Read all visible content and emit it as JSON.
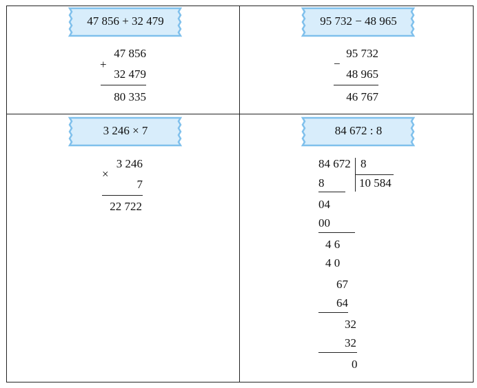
{
  "cells": [
    {
      "title": "47 856 + 32 479",
      "operator": "+",
      "operand1": "47 856",
      "operand2": "32 479",
      "result": "80 335"
    },
    {
      "title": "95 732 − 48 965",
      "operator": "−",
      "operand1": "95 732",
      "operand2": "48 965",
      "result": "46 767"
    },
    {
      "title": "3 246 × 7",
      "operator": "×",
      "operand1": "3 246",
      "operand2": "7",
      "result": "22 722"
    },
    {
      "title": "84 672 : 8",
      "dividend": "84 672",
      "divisor": "8",
      "quotient": "10 584",
      "steps": [
        "8",
        "04",
        "00",
        "4 6",
        "4 0",
        "67",
        "64",
        "32",
        "32",
        "0"
      ]
    }
  ]
}
